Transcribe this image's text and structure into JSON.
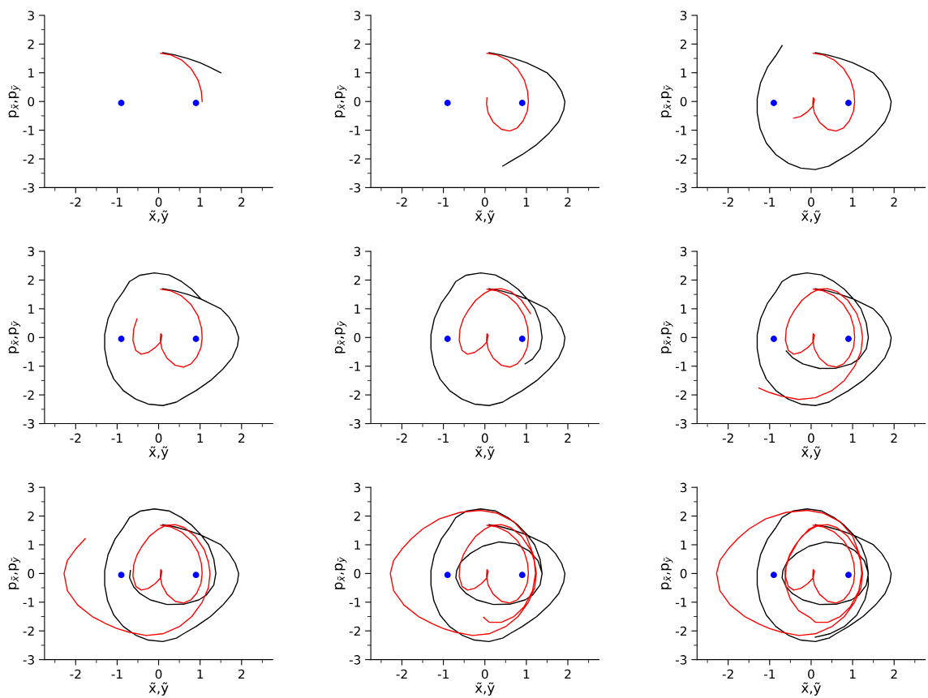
{
  "chart_data": [
    {
      "type": "line",
      "xlabel": "x̃,ỹ",
      "ylabel": "p$_{x̃}$,p$_{ỹ}$",
      "xlim": [
        -2.75,
        2.75
      ],
      "ylim": [
        -3,
        3
      ],
      "xticks": [
        -2,
        -1,
        0,
        1,
        2
      ],
      "yticks": [
        -3,
        -2,
        -1,
        0,
        1,
        2,
        3
      ],
      "grid": false,
      "legend": false,
      "series": [
        {
          "color": "#000000",
          "x": [
            0.1,
            0.4,
            0.7,
            1.0,
            1.25,
            1.5
          ],
          "values": [
            1.7,
            1.62,
            1.5,
            1.35,
            1.18,
            1.0
          ]
        },
        {
          "color": "#ff0000",
          "x": [
            0.05,
            0.3,
            0.55,
            0.78,
            0.95,
            1.03,
            1.05
          ],
          "values": [
            1.68,
            1.62,
            1.45,
            1.15,
            0.75,
            0.35,
            0.0
          ]
        },
        {
          "type": "scatter",
          "marker": "circle",
          "color": "#0000ff",
          "x": [
            -0.9,
            0.9
          ],
          "values": [
            -0.05,
            -0.05
          ]
        }
      ]
    },
    {
      "type": "line",
      "xlabel": "x̃,ỹ",
      "ylabel": "p$_{x̃}$,p$_{ỹ}$",
      "xlim": [
        -2.75,
        2.75
      ],
      "ylim": [
        -3,
        3
      ],
      "xticks": [
        -2,
        -1,
        0,
        1,
        2
      ],
      "yticks": [
        -3,
        -2,
        -1,
        0,
        1,
        2,
        3
      ],
      "grid": false,
      "legend": false,
      "series": [
        {
          "color": "#000000",
          "x": [
            0.1,
            0.4,
            0.7,
            1.0,
            1.25,
            1.5,
            1.7,
            1.85,
            1.93,
            1.9,
            1.78,
            1.55,
            1.25,
            0.9,
            0.6,
            0.43
          ],
          "values": [
            1.7,
            1.62,
            1.5,
            1.35,
            1.18,
            1.0,
            0.7,
            0.35,
            0.0,
            -0.3,
            -0.7,
            -1.1,
            -1.5,
            -1.85,
            -2.1,
            -2.25
          ]
        },
        {
          "color": "#ff0000",
          "x": [
            0.05,
            0.3,
            0.55,
            0.78,
            0.95,
            1.03,
            1.05,
            1.02,
            0.92,
            0.78,
            0.6,
            0.4,
            0.2,
            0.08,
            0.04,
            0.05
          ],
          "values": [
            1.68,
            1.62,
            1.45,
            1.15,
            0.75,
            0.35,
            0.0,
            -0.35,
            -0.68,
            -0.92,
            -1.03,
            -0.97,
            -0.72,
            -0.4,
            -0.1,
            0.13
          ]
        },
        {
          "type": "scatter",
          "marker": "circle",
          "color": "#0000ff",
          "x": [
            -0.9,
            0.9
          ],
          "values": [
            -0.05,
            -0.05
          ]
        }
      ]
    },
    {
      "type": "line",
      "xlabel": "x̃,ỹ",
      "ylabel": "p$_{x̃}$,p$_{ỹ}$",
      "xlim": [
        -2.75,
        2.75
      ],
      "ylim": [
        -3,
        3
      ],
      "xticks": [
        -2,
        -1,
        0,
        1,
        2
      ],
      "yticks": [
        -3,
        -2,
        -1,
        0,
        1,
        2,
        3
      ],
      "grid": false,
      "legend": false,
      "series": [
        {
          "color": "#000000",
          "x": [
            0.1,
            0.4,
            0.7,
            1.0,
            1.25,
            1.5,
            1.7,
            1.85,
            1.93,
            1.9,
            1.78,
            1.55,
            1.25,
            0.9,
            0.6,
            0.43,
            0.1,
            -0.25,
            -0.55,
            -0.85,
            -1.08,
            -1.23,
            -1.3,
            -1.3,
            -1.22,
            -1.05,
            -0.85,
            -0.7
          ],
          "values": [
            1.7,
            1.62,
            1.5,
            1.35,
            1.18,
            1.0,
            0.7,
            0.35,
            0.0,
            -0.3,
            -0.7,
            -1.1,
            -1.5,
            -1.85,
            -2.1,
            -2.25,
            -2.37,
            -2.32,
            -2.15,
            -1.85,
            -1.45,
            -0.95,
            -0.4,
            0.1,
            0.65,
            1.2,
            1.6,
            1.95
          ]
        },
        {
          "color": "#ff0000",
          "x": [
            0.05,
            0.3,
            0.55,
            0.78,
            0.95,
            1.03,
            1.05,
            1.02,
            0.92,
            0.78,
            0.6,
            0.4,
            0.2,
            0.08,
            0.04,
            0.05,
            0.08,
            0.05,
            -0.08,
            -0.25,
            -0.42
          ],
          "values": [
            1.68,
            1.62,
            1.45,
            1.15,
            0.75,
            0.35,
            0.0,
            -0.35,
            -0.68,
            -0.92,
            -1.03,
            -0.97,
            -0.72,
            -0.4,
            -0.1,
            0.13,
            0.08,
            -0.15,
            -0.35,
            -0.52,
            -0.58
          ]
        },
        {
          "type": "scatter",
          "marker": "circle",
          "color": "#0000ff",
          "x": [
            -0.9,
            0.9
          ],
          "values": [
            -0.05,
            -0.05
          ]
        }
      ]
    },
    {
      "type": "line",
      "xlabel": "x̃,ỹ",
      "ylabel": "p$_{x̃}$,p$_{ỹ}$",
      "xlim": [
        -2.75,
        2.75
      ],
      "ylim": [
        -3,
        3
      ],
      "xticks": [
        -2,
        -1,
        0,
        1,
        2
      ],
      "yticks": [
        -3,
        -2,
        -1,
        0,
        1,
        2,
        3
      ],
      "grid": false,
      "legend": false,
      "series": [
        {
          "color": "#000000",
          "x": [
            0.1,
            0.4,
            0.7,
            1.0,
            1.25,
            1.5,
            1.7,
            1.85,
            1.93,
            1.9,
            1.78,
            1.55,
            1.25,
            0.9,
            0.6,
            0.43,
            0.1,
            -0.25,
            -0.55,
            -0.85,
            -1.08,
            -1.23,
            -1.3,
            -1.3,
            -1.22,
            -1.05,
            -0.85,
            -0.7,
            -0.45,
            -0.1,
            0.25,
            0.55,
            0.8,
            1.03
          ],
          "values": [
            1.7,
            1.62,
            1.5,
            1.35,
            1.18,
            1.0,
            0.7,
            0.35,
            0.0,
            -0.3,
            -0.7,
            -1.1,
            -1.5,
            -1.85,
            -2.1,
            -2.25,
            -2.37,
            -2.32,
            -2.15,
            -1.85,
            -1.45,
            -0.95,
            -0.4,
            0.1,
            0.65,
            1.2,
            1.6,
            1.95,
            2.17,
            2.25,
            2.18,
            1.95,
            1.68,
            1.33
          ]
        },
        {
          "color": "#ff0000",
          "x": [
            0.05,
            0.3,
            0.55,
            0.78,
            0.95,
            1.03,
            1.05,
            1.02,
            0.92,
            0.78,
            0.6,
            0.4,
            0.2,
            0.08,
            0.04,
            0.05,
            0.08,
            0.05,
            -0.08,
            -0.25,
            -0.42,
            -0.55,
            -0.62,
            -0.6,
            -0.52
          ],
          "values": [
            1.68,
            1.62,
            1.45,
            1.15,
            0.75,
            0.35,
            0.0,
            -0.35,
            -0.68,
            -0.92,
            -1.03,
            -0.97,
            -0.72,
            -0.4,
            -0.1,
            0.13,
            0.08,
            -0.15,
            -0.35,
            -0.52,
            -0.58,
            -0.45,
            -0.1,
            0.3,
            0.65
          ]
        },
        {
          "type": "scatter",
          "marker": "circle",
          "color": "#0000ff",
          "x": [
            -0.9,
            0.9
          ],
          "values": [
            -0.05,
            -0.05
          ]
        }
      ]
    },
    {
      "type": "line",
      "xlabel": "x̃,ỹ",
      "ylabel": "p$_{x̃}$,p$_{ỹ}$",
      "xlim": [
        -2.75,
        2.75
      ],
      "ylim": [
        -3,
        3
      ],
      "xticks": [
        -2,
        -1,
        0,
        1,
        2
      ],
      "yticks": [
        -3,
        -2,
        -1,
        0,
        1,
        2,
        3
      ],
      "grid": false,
      "legend": false,
      "series": [
        {
          "color": "#000000",
          "x": [
            0.1,
            0.4,
            0.7,
            1.0,
            1.25,
            1.5,
            1.7,
            1.85,
            1.93,
            1.9,
            1.78,
            1.55,
            1.25,
            0.9,
            0.6,
            0.43,
            0.1,
            -0.25,
            -0.55,
            -0.85,
            -1.08,
            -1.23,
            -1.3,
            -1.3,
            -1.22,
            -1.05,
            -0.85,
            -0.7,
            -0.45,
            -0.1,
            0.25,
            0.55,
            0.8,
            1.03,
            1.2,
            1.33,
            1.38,
            1.33,
            1.15,
            0.97
          ],
          "values": [
            1.7,
            1.62,
            1.5,
            1.35,
            1.18,
            1.0,
            0.7,
            0.35,
            0.0,
            -0.3,
            -0.7,
            -1.1,
            -1.5,
            -1.85,
            -2.1,
            -2.25,
            -2.37,
            -2.32,
            -2.15,
            -1.85,
            -1.45,
            -0.95,
            -0.4,
            0.1,
            0.65,
            1.2,
            1.6,
            1.95,
            2.17,
            2.25,
            2.18,
            1.95,
            1.68,
            1.33,
            1.0,
            0.5,
            0.0,
            -0.4,
            -0.75,
            -0.92
          ]
        },
        {
          "color": "#ff0000",
          "x": [
            0.05,
            0.3,
            0.55,
            0.78,
            0.95,
            1.03,
            1.05,
            1.02,
            0.92,
            0.78,
            0.6,
            0.4,
            0.2,
            0.08,
            0.04,
            0.05,
            0.08,
            0.05,
            -0.08,
            -0.25,
            -0.42,
            -0.55,
            -0.62,
            -0.6,
            -0.52,
            -0.4,
            -0.22,
            0.0,
            0.18,
            0.4,
            0.62,
            0.88,
            1.1
          ],
          "values": [
            1.68,
            1.62,
            1.45,
            1.15,
            0.75,
            0.35,
            0.0,
            -0.35,
            -0.68,
            -0.92,
            -1.03,
            -0.97,
            -0.72,
            -0.4,
            -0.1,
            0.13,
            0.08,
            -0.15,
            -0.35,
            -0.52,
            -0.58,
            -0.45,
            -0.1,
            0.3,
            0.65,
            0.95,
            1.3,
            1.55,
            1.68,
            1.7,
            1.6,
            1.3,
            0.83
          ]
        },
        {
          "type": "scatter",
          "marker": "circle",
          "color": "#0000ff",
          "x": [
            -0.9,
            0.9
          ],
          "values": [
            -0.05,
            -0.05
          ]
        }
      ]
    },
    {
      "type": "line",
      "xlabel": "x̃,ỹ",
      "ylabel": "p$_{x̃}$,p$_{ỹ}$",
      "xlim": [
        -2.75,
        2.75
      ],
      "ylim": [
        -3,
        3
      ],
      "xticks": [
        -2,
        -1,
        0,
        1,
        2
      ],
      "yticks": [
        -3,
        -2,
        -1,
        0,
        1,
        2,
        3
      ],
      "grid": false,
      "legend": false,
      "series": [
        {
          "color": "#000000",
          "x": [
            0.1,
            0.4,
            0.7,
            1.0,
            1.25,
            1.5,
            1.7,
            1.85,
            1.93,
            1.9,
            1.78,
            1.55,
            1.25,
            0.9,
            0.6,
            0.43,
            0.1,
            -0.25,
            -0.55,
            -0.85,
            -1.08,
            -1.23,
            -1.3,
            -1.3,
            -1.22,
            -1.05,
            -0.85,
            -0.7,
            -0.45,
            -0.1,
            0.25,
            0.55,
            0.8,
            1.03,
            1.2,
            1.33,
            1.38,
            1.33,
            1.15,
            0.97,
            0.6,
            0.2,
            -0.2,
            -0.45,
            -0.6
          ],
          "values": [
            1.7,
            1.62,
            1.5,
            1.35,
            1.18,
            1.0,
            0.7,
            0.35,
            0.0,
            -0.3,
            -0.7,
            -1.1,
            -1.5,
            -1.85,
            -2.1,
            -2.25,
            -2.37,
            -2.32,
            -2.15,
            -1.85,
            -1.45,
            -0.95,
            -0.4,
            0.1,
            0.65,
            1.2,
            1.6,
            1.95,
            2.17,
            2.25,
            2.18,
            1.95,
            1.68,
            1.33,
            1.0,
            0.5,
            0.0,
            -0.4,
            -0.75,
            -0.92,
            -1.07,
            -1.08,
            -0.92,
            -0.7,
            -0.47
          ]
        },
        {
          "color": "#ff0000",
          "x": [
            0.05,
            0.3,
            0.55,
            0.78,
            0.95,
            1.03,
            1.05,
            1.02,
            0.92,
            0.78,
            0.6,
            0.4,
            0.2,
            0.08,
            0.04,
            0.05,
            0.08,
            0.05,
            -0.08,
            -0.25,
            -0.42,
            -0.55,
            -0.62,
            -0.6,
            -0.52,
            -0.4,
            -0.22,
            0.0,
            0.18,
            0.4,
            0.62,
            0.88,
            1.1,
            1.2,
            1.24,
            1.2,
            1.05,
            0.8,
            0.5,
            0.1,
            -0.3,
            -0.7,
            -1.0,
            -1.26
          ],
          "values": [
            1.68,
            1.62,
            1.45,
            1.15,
            0.75,
            0.35,
            0.0,
            -0.35,
            -0.68,
            -0.92,
            -1.03,
            -0.97,
            -0.72,
            -0.4,
            -0.1,
            0.13,
            0.08,
            -0.15,
            -0.35,
            -0.52,
            -0.58,
            -0.45,
            -0.1,
            0.3,
            0.65,
            0.95,
            1.3,
            1.55,
            1.68,
            1.7,
            1.6,
            1.3,
            0.83,
            0.4,
            0.0,
            -0.5,
            -1.0,
            -1.5,
            -1.85,
            -2.1,
            -2.16,
            -2.05,
            -1.92,
            -1.76
          ]
        },
        {
          "type": "scatter",
          "marker": "circle",
          "color": "#0000ff",
          "x": [
            -0.9,
            0.9
          ],
          "values": [
            -0.05,
            -0.05
          ]
        }
      ]
    },
    {
      "type": "line",
      "xlabel": "x̃,ỹ",
      "ylabel": "p$_{x̃}$,p$_{ỹ}$",
      "xlim": [
        -2.75,
        2.75
      ],
      "ylim": [
        -3,
        3
      ],
      "xticks": [
        -2,
        -1,
        0,
        1,
        2
      ],
      "yticks": [
        -3,
        -2,
        -1,
        0,
        1,
        2,
        3
      ],
      "grid": false,
      "legend": false,
      "series": [
        {
          "color": "#000000",
          "x": [
            0.1,
            0.4,
            0.7,
            1.0,
            1.25,
            1.5,
            1.7,
            1.85,
            1.93,
            1.9,
            1.78,
            1.55,
            1.25,
            0.9,
            0.6,
            0.43,
            0.1,
            -0.25,
            -0.55,
            -0.85,
            -1.08,
            -1.23,
            -1.3,
            -1.3,
            -1.22,
            -1.05,
            -0.85,
            -0.7,
            -0.45,
            -0.1,
            0.25,
            0.55,
            0.8,
            1.03,
            1.2,
            1.33,
            1.38,
            1.33,
            1.15,
            0.97,
            0.6,
            0.2,
            -0.2,
            -0.45,
            -0.6,
            -0.7,
            -0.68
          ],
          "values": [
            1.7,
            1.62,
            1.5,
            1.35,
            1.18,
            1.0,
            0.7,
            0.35,
            0.0,
            -0.3,
            -0.7,
            -1.1,
            -1.5,
            -1.85,
            -2.1,
            -2.25,
            -2.37,
            -2.32,
            -2.15,
            -1.85,
            -1.45,
            -0.95,
            -0.4,
            0.1,
            0.65,
            1.2,
            1.6,
            1.95,
            2.17,
            2.25,
            2.18,
            1.95,
            1.68,
            1.33,
            1.0,
            0.5,
            0.0,
            -0.4,
            -0.75,
            -0.92,
            -1.07,
            -1.08,
            -0.92,
            -0.7,
            -0.47,
            -0.15,
            0.1
          ]
        },
        {
          "color": "#ff0000",
          "x": [
            0.05,
            0.3,
            0.55,
            0.78,
            0.95,
            1.03,
            1.05,
            1.02,
            0.92,
            0.78,
            0.6,
            0.4,
            0.2,
            0.08,
            0.04,
            0.05,
            0.08,
            0.05,
            -0.08,
            -0.25,
            -0.42,
            -0.55,
            -0.62,
            -0.6,
            -0.52,
            -0.4,
            -0.22,
            0.0,
            0.18,
            0.4,
            0.62,
            0.88,
            1.1,
            1.2,
            1.24,
            1.2,
            1.05,
            0.8,
            0.5,
            0.1,
            -0.3,
            -0.7,
            -1.0,
            -1.26,
            -1.6,
            -1.95,
            -2.2,
            -2.28,
            -2.2,
            -2.0,
            -1.77
          ],
          "values": [
            1.68,
            1.62,
            1.45,
            1.15,
            0.75,
            0.35,
            0.0,
            -0.35,
            -0.68,
            -0.92,
            -1.03,
            -0.97,
            -0.72,
            -0.4,
            -0.1,
            0.13,
            0.08,
            -0.15,
            -0.35,
            -0.52,
            -0.58,
            -0.45,
            -0.1,
            0.3,
            0.65,
            0.95,
            1.3,
            1.55,
            1.68,
            1.7,
            1.6,
            1.3,
            0.83,
            0.4,
            0.0,
            -0.5,
            -1.0,
            -1.5,
            -1.85,
            -2.1,
            -2.16,
            -2.05,
            -1.92,
            -1.76,
            -1.5,
            -1.1,
            -0.6,
            0.0,
            0.45,
            0.85,
            1.21
          ]
        },
        {
          "type": "scatter",
          "marker": "circle",
          "color": "#0000ff",
          "x": [
            -0.9,
            0.9
          ],
          "values": [
            -0.05,
            -0.05
          ]
        }
      ]
    },
    {
      "type": "line",
      "xlabel": "x̃,ỹ",
      "ylabel": "p$_{x̃}$,p$_{ỹ}$",
      "xlim": [
        -2.75,
        2.75
      ],
      "ylim": [
        -3,
        3
      ],
      "xticks": [
        -2,
        -1,
        0,
        1,
        2
      ],
      "yticks": [
        -3,
        -2,
        -1,
        0,
        1,
        2,
        3
      ],
      "grid": false,
      "legend": false,
      "series": [
        {
          "color": "#000000",
          "x": [
            0.1,
            0.4,
            0.7,
            1.0,
            1.25,
            1.5,
            1.7,
            1.85,
            1.93,
            1.9,
            1.78,
            1.55,
            1.25,
            0.9,
            0.6,
            0.43,
            0.1,
            -0.25,
            -0.55,
            -0.85,
            -1.08,
            -1.23,
            -1.3,
            -1.3,
            -1.22,
            -1.05,
            -0.85,
            -0.7,
            -0.45,
            -0.1,
            0.25,
            0.55,
            0.8,
            1.03,
            1.2,
            1.33,
            1.38,
            1.33,
            1.15,
            0.97,
            0.6,
            0.2,
            -0.2,
            -0.45,
            -0.6,
            -0.7,
            -0.68,
            -0.58,
            -0.35,
            -0.05,
            0.35,
            0.75,
            1.05,
            1.28,
            1.37
          ],
          "values": [
            1.7,
            1.62,
            1.5,
            1.35,
            1.18,
            1.0,
            0.7,
            0.35,
            0.0,
            -0.3,
            -0.7,
            -1.1,
            -1.5,
            -1.85,
            -2.1,
            -2.25,
            -2.37,
            -2.32,
            -2.15,
            -1.85,
            -1.45,
            -0.95,
            -0.4,
            0.1,
            0.65,
            1.2,
            1.6,
            1.95,
            2.17,
            2.25,
            2.18,
            1.95,
            1.68,
            1.33,
            1.0,
            0.5,
            0.0,
            -0.4,
            -0.75,
            -0.92,
            -1.07,
            -1.08,
            -0.92,
            -0.7,
            -0.47,
            -0.15,
            0.1,
            0.4,
            0.7,
            0.95,
            1.1,
            1.03,
            0.8,
            0.45,
            0.05
          ]
        },
        {
          "color": "#ff0000",
          "x": [
            0.05,
            0.3,
            0.55,
            0.78,
            0.95,
            1.03,
            1.05,
            1.02,
            0.92,
            0.78,
            0.6,
            0.4,
            0.2,
            0.08,
            0.04,
            0.05,
            0.08,
            0.05,
            -0.08,
            -0.25,
            -0.42,
            -0.55,
            -0.62,
            -0.6,
            -0.52,
            -0.4,
            -0.22,
            0.0,
            0.18,
            0.4,
            0.62,
            0.88,
            1.1,
            1.2,
            1.24,
            1.2,
            1.05,
            0.8,
            0.5,
            0.1,
            -0.3,
            -0.7,
            -1.0,
            -1.26,
            -1.6,
            -1.95,
            -2.2,
            -2.28,
            -2.2,
            -2.0,
            -1.77,
            -1.5,
            -1.1,
            -0.6,
            -0.1,
            0.3,
            0.7,
            1.0,
            1.18,
            1.22,
            1.15,
            0.95,
            0.7,
            0.4,
            0.1,
            -0.03
          ],
          "values": [
            1.68,
            1.62,
            1.45,
            1.15,
            0.75,
            0.35,
            0.0,
            -0.35,
            -0.68,
            -0.92,
            -1.03,
            -0.97,
            -0.72,
            -0.4,
            -0.1,
            0.13,
            0.08,
            -0.15,
            -0.35,
            -0.52,
            -0.58,
            -0.45,
            -0.1,
            0.3,
            0.65,
            0.95,
            1.3,
            1.55,
            1.68,
            1.7,
            1.6,
            1.3,
            0.83,
            0.4,
            0.0,
            -0.5,
            -1.0,
            -1.5,
            -1.85,
            -2.1,
            -2.16,
            -2.05,
            -1.92,
            -1.76,
            -1.5,
            -1.1,
            -0.6,
            0.0,
            0.45,
            0.85,
            1.21,
            1.55,
            1.9,
            2.13,
            2.2,
            2.1,
            1.8,
            1.3,
            0.6,
            0.0,
            -0.6,
            -1.15,
            -1.5,
            -1.7,
            -1.7,
            -1.53
          ]
        },
        {
          "type": "scatter",
          "marker": "circle",
          "color": "#0000ff",
          "x": [
            -0.9,
            0.9
          ],
          "values": [
            -0.05,
            -0.05
          ]
        }
      ]
    },
    {
      "type": "line",
      "xlabel": "x̃,ỹ",
      "ylabel": "p$_{x̃}$,p$_{ỹ}$",
      "xlim": [
        -2.75,
        2.75
      ],
      "ylim": [
        -3,
        3
      ],
      "xticks": [
        -2,
        -1,
        0,
        1,
        2
      ],
      "yticks": [
        -3,
        -2,
        -1,
        0,
        1,
        2,
        3
      ],
      "grid": false,
      "legend": false,
      "series": [
        {
          "color": "#000000",
          "x": [
            0.1,
            0.4,
            0.7,
            1.0,
            1.25,
            1.5,
            1.7,
            1.85,
            1.93,
            1.9,
            1.78,
            1.55,
            1.25,
            0.9,
            0.6,
            0.43,
            0.1,
            -0.25,
            -0.55,
            -0.85,
            -1.08,
            -1.23,
            -1.3,
            -1.3,
            -1.22,
            -1.05,
            -0.85,
            -0.7,
            -0.45,
            -0.1,
            0.25,
            0.55,
            0.8,
            1.03,
            1.2,
            1.33,
            1.38,
            1.33,
            1.15,
            0.97,
            0.6,
            0.2,
            -0.2,
            -0.45,
            -0.6,
            -0.7,
            -0.68,
            -0.58,
            -0.35,
            -0.05,
            0.35,
            0.75,
            1.05,
            1.28,
            1.37,
            1.38,
            1.3,
            1.1,
            0.8,
            0.45,
            0.1
          ],
          "values": [
            1.7,
            1.62,
            1.5,
            1.35,
            1.18,
            1.0,
            0.7,
            0.35,
            0.0,
            -0.3,
            -0.7,
            -1.1,
            -1.5,
            -1.85,
            -2.1,
            -2.25,
            -2.37,
            -2.32,
            -2.15,
            -1.85,
            -1.45,
            -0.95,
            -0.4,
            0.1,
            0.65,
            1.2,
            1.6,
            1.95,
            2.17,
            2.25,
            2.18,
            1.95,
            1.68,
            1.33,
            1.0,
            0.5,
            0.0,
            -0.4,
            -0.75,
            -0.92,
            -1.07,
            -1.08,
            -0.92,
            -0.7,
            -0.47,
            -0.15,
            0.1,
            0.4,
            0.7,
            0.95,
            1.1,
            1.03,
            0.8,
            0.45,
            0.05,
            -0.4,
            -0.9,
            -1.45,
            -1.85,
            -2.1,
            -2.22
          ]
        },
        {
          "color": "#ff0000",
          "x": [
            0.05,
            0.3,
            0.55,
            0.78,
            0.95,
            1.03,
            1.05,
            1.02,
            0.92,
            0.78,
            0.6,
            0.4,
            0.2,
            0.08,
            0.04,
            0.05,
            0.08,
            0.05,
            -0.08,
            -0.25,
            -0.42,
            -0.55,
            -0.62,
            -0.6,
            -0.52,
            -0.4,
            -0.22,
            0.0,
            0.18,
            0.4,
            0.62,
            0.88,
            1.1,
            1.2,
            1.24,
            1.2,
            1.05,
            0.8,
            0.5,
            0.1,
            -0.3,
            -0.7,
            -1.0,
            -1.26,
            -1.6,
            -1.95,
            -2.2,
            -2.28,
            -2.2,
            -2.0,
            -1.77,
            -1.5,
            -1.1,
            -0.6,
            -0.1,
            0.3,
            0.7,
            1.0,
            1.18,
            1.22,
            1.15,
            0.95,
            0.7,
            0.4,
            0.1,
            -0.03,
            -0.3,
            -0.5,
            -0.62,
            -0.63,
            -0.52,
            -0.3,
            -0.05,
            0.15
          ],
          "values": [
            1.68,
            1.62,
            1.45,
            1.15,
            0.75,
            0.35,
            0.0,
            -0.35,
            -0.68,
            -0.92,
            -1.03,
            -0.97,
            -0.72,
            -0.4,
            -0.1,
            0.13,
            0.08,
            -0.15,
            -0.35,
            -0.52,
            -0.58,
            -0.45,
            -0.1,
            0.3,
            0.65,
            0.95,
            1.3,
            1.55,
            1.68,
            1.7,
            1.6,
            1.3,
            0.83,
            0.4,
            0.0,
            -0.5,
            -1.0,
            -1.5,
            -1.85,
            -2.1,
            -2.16,
            -2.05,
            -1.92,
            -1.76,
            -1.5,
            -1.1,
            -0.6,
            0.0,
            0.45,
            0.85,
            1.21,
            1.55,
            1.9,
            2.13,
            2.2,
            2.1,
            1.8,
            1.3,
            0.6,
            0.0,
            -0.6,
            -1.15,
            -1.5,
            -1.7,
            -1.7,
            -1.53,
            -1.3,
            -0.9,
            -0.4,
            0.1,
            0.6,
            1.15,
            1.55,
            1.68
          ]
        },
        {
          "type": "scatter",
          "marker": "circle",
          "color": "#0000ff",
          "x": [
            -0.9,
            0.9
          ],
          "values": [
            -0.05,
            -0.05
          ]
        }
      ]
    }
  ]
}
